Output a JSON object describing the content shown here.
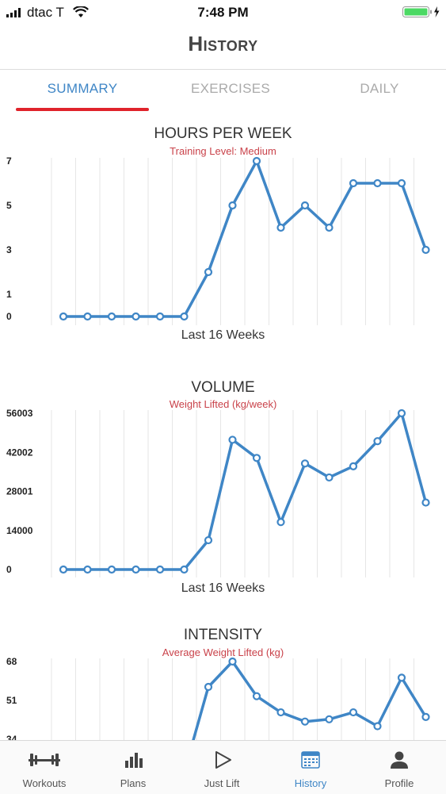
{
  "status_bar": {
    "carrier": "dtac T",
    "time": "7:48 PM"
  },
  "header": {
    "title": "History"
  },
  "tabs": [
    {
      "label": "SUMMARY",
      "active": true
    },
    {
      "label": "EXERCISES",
      "active": false
    },
    {
      "label": "DAILY",
      "active": false
    }
  ],
  "colors": {
    "accent": "#3f86c6",
    "indicator": "#e0232b",
    "subtitle": "#c9424a",
    "line": "#3f86c6"
  },
  "charts": [
    {
      "title": "HOURS PER WEEK",
      "subtitle": "Training Level: Medium",
      "footer": "Last 16 Weeks"
    },
    {
      "title": "VOLUME",
      "subtitle": "Weight Lifted (kg/week)",
      "footer": "Last 16 Weeks"
    },
    {
      "title": "INTENSITY",
      "subtitle": "Average Weight Lifted (kg)",
      "footer": ""
    }
  ],
  "chart_data": [
    {
      "type": "line",
      "title": "HOURS PER WEEK",
      "subtitle": "Training Level: Medium",
      "xlabel": "Last 16 Weeks",
      "ylabel": "",
      "y_ticks": [
        "0",
        "1",
        "3",
        "5",
        "7"
      ],
      "ylim": [
        0,
        7
      ],
      "grid": "vertical",
      "series": [
        {
          "values": [
            0,
            0,
            0,
            0,
            0,
            0,
            2,
            5,
            7,
            4,
            5,
            4,
            6,
            6,
            6,
            3
          ]
        }
      ]
    },
    {
      "type": "line",
      "title": "VOLUME",
      "subtitle": "Weight Lifted (kg/week)",
      "xlabel": "Last 16 Weeks",
      "ylabel": "",
      "y_ticks": [
        "0",
        "14000",
        "28001",
        "42002",
        "56003"
      ],
      "ylim": [
        0,
        56003
      ],
      "grid": "vertical",
      "series": [
        {
          "values": [
            0,
            0,
            0,
            0,
            0,
            0,
            10500,
            46500,
            40000,
            17000,
            38000,
            33000,
            37000,
            46000,
            56000,
            24000
          ]
        }
      ]
    },
    {
      "type": "line",
      "title": "INTENSITY",
      "subtitle": "Average Weight Lifted (kg)",
      "xlabel": "",
      "ylabel": "",
      "y_ticks": [
        "34",
        "51",
        "68"
      ],
      "ylim": [
        34,
        68
      ],
      "grid": "vertical",
      "series": [
        {
          "values": [
            null,
            null,
            null,
            null,
            null,
            20,
            57,
            68,
            53,
            46,
            42,
            43,
            46,
            40,
            61,
            44
          ]
        }
      ]
    }
  ],
  "tabbar": [
    {
      "label": "Workouts",
      "icon": "dumbbell-icon",
      "active": false
    },
    {
      "label": "Plans",
      "icon": "bar-chart-icon",
      "active": false
    },
    {
      "label": "Just Lift",
      "icon": "play-icon",
      "active": false
    },
    {
      "label": "History",
      "icon": "calendar-icon",
      "active": true
    },
    {
      "label": "Profile",
      "icon": "person-icon",
      "active": false
    }
  ]
}
